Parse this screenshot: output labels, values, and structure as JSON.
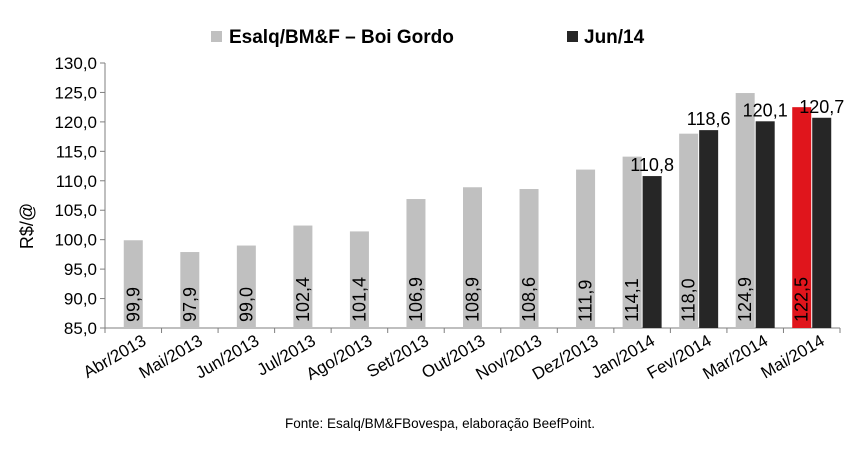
{
  "chart_data": {
    "type": "bar",
    "ylabel": "R$/@",
    "ylim": [
      85,
      130
    ],
    "yticks": [
      "85,0",
      "90,0",
      "95,0",
      "100,0",
      "105,0",
      "110,0",
      "115,0",
      "120,0",
      "125,0",
      "130,0"
    ],
    "grid": false,
    "legend_position": "top",
    "categories": [
      "Abr/2013",
      "Mai/2013",
      "Jun/2013",
      "Jul/2013",
      "Ago/2013",
      "Set/2013",
      "Out/2013",
      "Nov/2013",
      "Dez/2013",
      "Jan/2014",
      "Fev/2014",
      "Mar/2014",
      "Mai/2014"
    ],
    "series": [
      {
        "name": "Esalq/BM&F – Boi Gordo",
        "color": "#c0c0c0",
        "highlight_color": "#e0151c",
        "highlight_index": 12,
        "values": [
          99.9,
          97.9,
          99.0,
          102.4,
          101.4,
          106.9,
          108.9,
          108.6,
          111.9,
          114.1,
          118.0,
          124.9,
          122.5
        ],
        "labels": [
          "99,9",
          "97,9",
          "99,0",
          "102,4",
          "101,4",
          "106,9",
          "108,9",
          "108,6",
          "111,9",
          "114,1",
          "118,0",
          "124,9",
          "122,5"
        ]
      },
      {
        "name": "Jun/14",
        "color": "#262626",
        "values": [
          null,
          null,
          null,
          null,
          null,
          null,
          null,
          null,
          null,
          110.8,
          118.6,
          120.1,
          120.7
        ],
        "labels": [
          null,
          null,
          null,
          null,
          null,
          null,
          null,
          null,
          null,
          "110,8",
          "118,6",
          "120,1",
          "120,7"
        ]
      }
    ],
    "source": "Fonte: Esalq/BM&FBovespa, elaboração BeefPoint."
  }
}
